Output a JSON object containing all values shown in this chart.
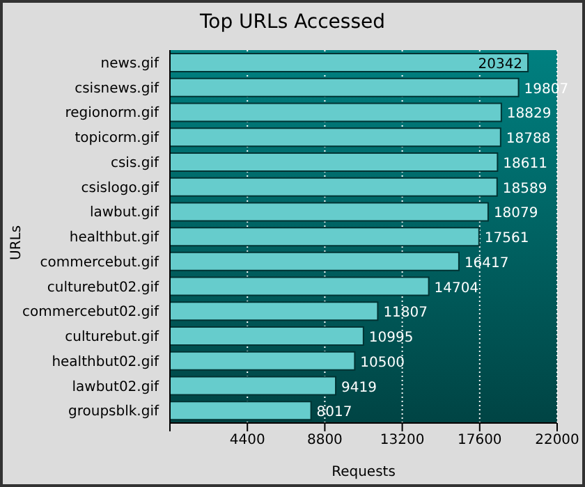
{
  "chart_data": {
    "type": "bar",
    "orientation": "horizontal",
    "title": "Top URLs Accessed",
    "xlabel": "Requests",
    "ylabel": "URLs",
    "categories": [
      "news.gif",
      "csisnews.gif",
      "regionorm.gif",
      "topicorm.gif",
      "csis.gif",
      "csislogo.gif",
      "lawbut.gif",
      "healthbut.gif",
      "commercebut.gif",
      "culturebut02.gif",
      "commercebut02.gif",
      "culturebut.gif",
      "healthbut02.gif",
      "lawbut02.gif",
      "groupsblk.gif"
    ],
    "values": [
      20342,
      19807,
      18829,
      18788,
      18611,
      18589,
      18079,
      17561,
      16417,
      14704,
      11807,
      10995,
      10500,
      9419,
      8017
    ],
    "color": "#66cccc",
    "xlim": [
      0,
      22000
    ],
    "xticks": [
      {
        "value": 0,
        "label": null
      },
      4400,
      8800,
      13200,
      17600,
      22000
    ],
    "grid": "x",
    "data_labels": true
  }
}
